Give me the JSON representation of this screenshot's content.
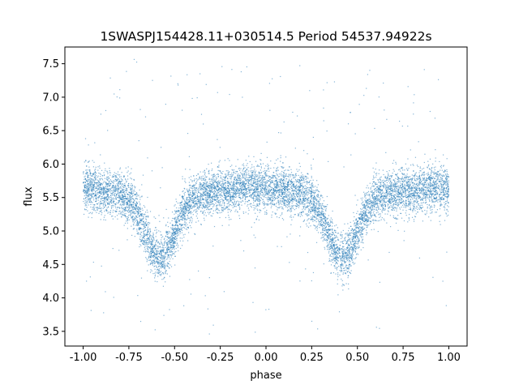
{
  "chart_data": {
    "type": "scatter",
    "title": "1SWASPJ154428.11+030514.5 Period 54537.94922s",
    "xlabel": "phase",
    "ylabel": "flux",
    "xlim": [
      -1.1,
      1.1
    ],
    "ylim": [
      3.28,
      7.75
    ],
    "xticks": [
      "-1.00",
      "-0.75",
      "-0.50",
      "-0.25",
      "0.00",
      "0.25",
      "0.50",
      "0.75",
      "1.00"
    ],
    "xtick_values": [
      -1.0,
      -0.75,
      -0.5,
      -0.25,
      0.0,
      0.25,
      0.5,
      0.75,
      1.0
    ],
    "yticks": [
      "3.5",
      "4.0",
      "4.5",
      "5.0",
      "5.5",
      "6.0",
      "6.5",
      "7.0",
      "7.5"
    ],
    "ytick_values": [
      3.5,
      4.0,
      4.5,
      5.0,
      5.5,
      6.0,
      6.5,
      7.0,
      7.5
    ],
    "grid": false,
    "legend": "none",
    "point_color": "#1f77b4",
    "light_curve": {
      "x_range": [
        -1.0,
        1.0
      ],
      "baseline_flux": 5.62,
      "scatter_flux": 0.17,
      "eclipses": [
        {
          "phase_center": -0.58,
          "min_flux": 4.58,
          "width": 0.085
        },
        {
          "phase_center": 0.42,
          "min_flux": 4.58,
          "width": 0.085
        }
      ],
      "outlier_range": [
        3.45,
        7.6
      ]
    }
  }
}
